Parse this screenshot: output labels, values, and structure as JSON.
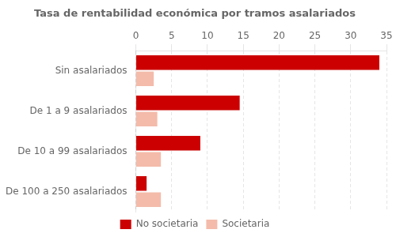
{
  "chart_data": {
    "type": "bar",
    "orientation": "horizontal",
    "title": "Tasa de rentabilidad económica por tramos asalariados",
    "categories": [
      "Sin asalariados",
      "De 1 a 9 asalariados",
      "De 10 a 99 asalariados",
      "De 100 a 250 asalariados"
    ],
    "series": [
      {
        "name": "No societaria",
        "color": "#CC0000",
        "values": [
          34.0,
          14.5,
          9.0,
          1.5
        ]
      },
      {
        "name": "Societaria",
        "color": "#F4BBAA",
        "values": [
          2.5,
          3.0,
          3.5,
          3.5
        ]
      }
    ],
    "xlim": [
      0,
      35
    ],
    "xticks": [
      0,
      5,
      10,
      15,
      20,
      25,
      30,
      35
    ],
    "grid": true,
    "legend": "bottom"
  }
}
